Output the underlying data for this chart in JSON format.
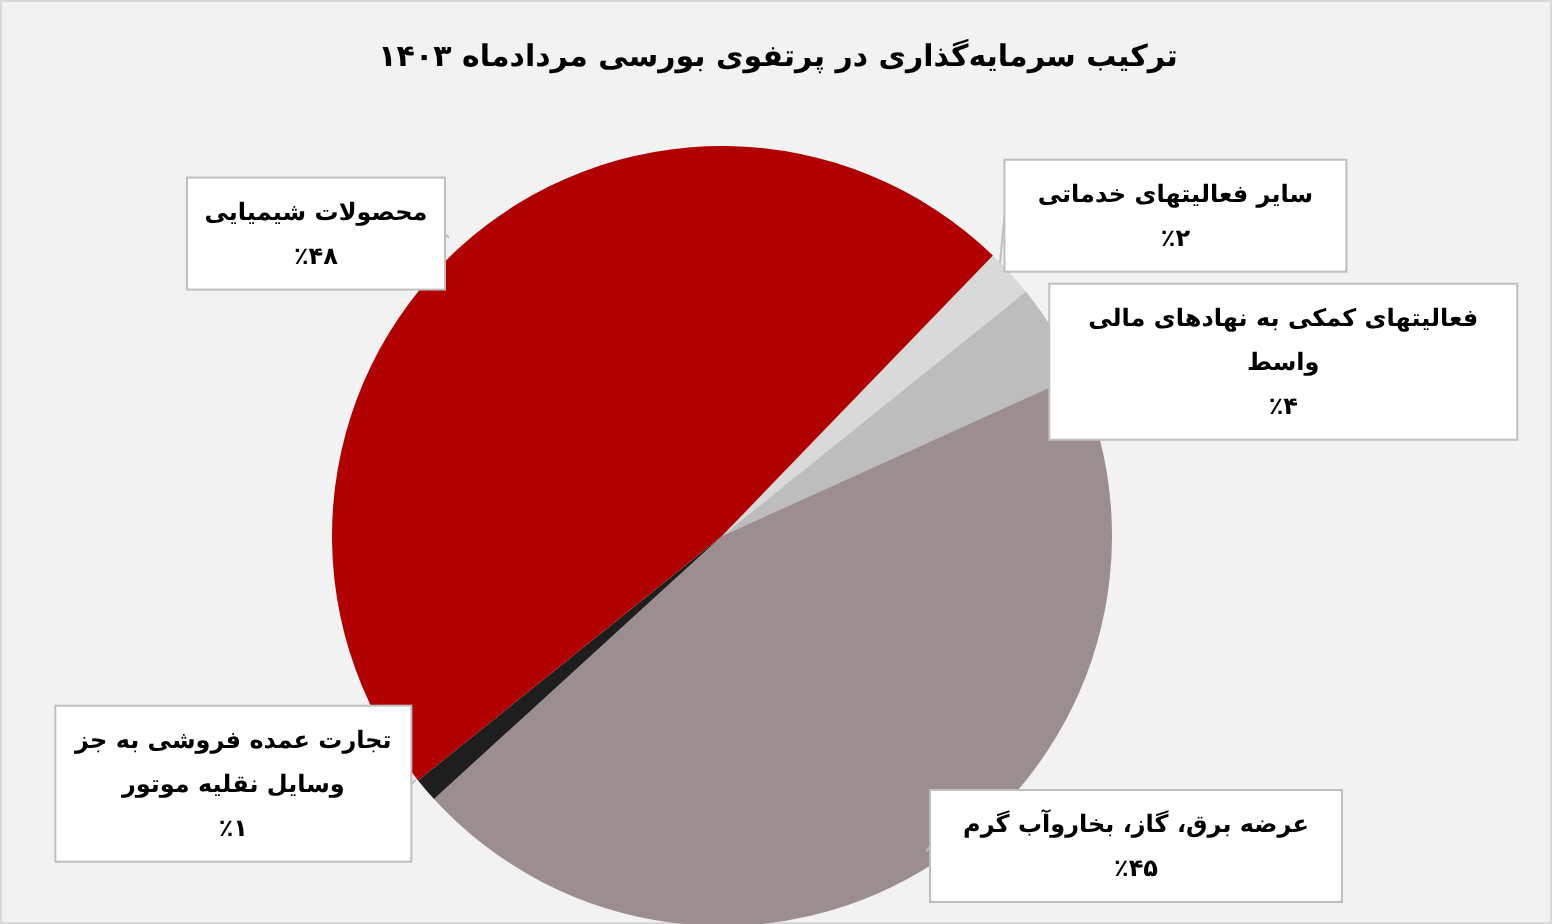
{
  "chart_data": {
    "type": "pie",
    "title": "ترکیب سرمایه‌گذاری در پرتفوی بورسی مردادماه ۱۴۰۳",
    "categories": [
      "سایر فعالیتهای خدماتی",
      "فعالیتهای کمکی به نهادهای مالی واسط",
      "عرضه برق، گاز، بخاروآب گرم",
      "تجارت عمده فروشی به جز وسایل نقلیه موتور",
      "محصولات شیمیایی"
    ],
    "values": [
      2,
      4,
      45,
      1,
      48
    ],
    "value_labels": [
      "٪۲",
      "٪۴",
      "٪۴۵",
      "٪۱",
      "٪۴۸"
    ],
    "colors": [
      "#d9d9d9",
      "#bdbdbd",
      "#9c8e8e",
      "#1e1e1e",
      "#b00000"
    ]
  }
}
